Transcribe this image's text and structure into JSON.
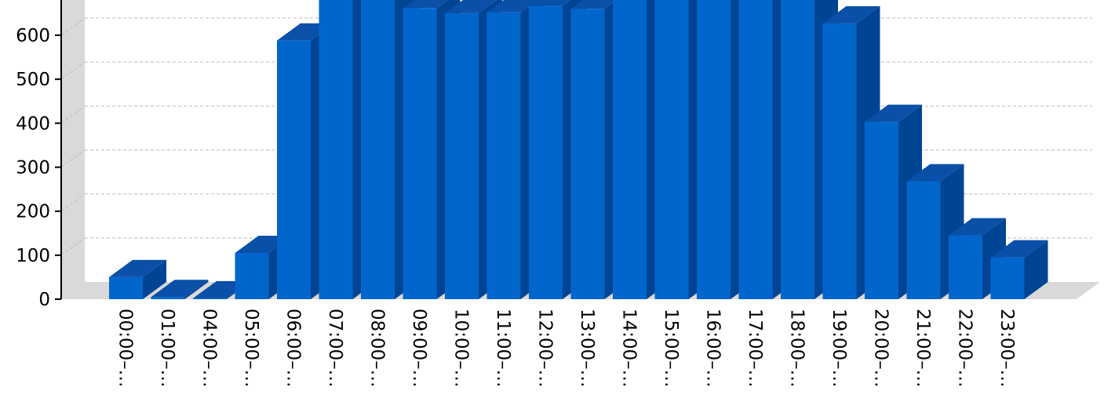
{
  "chart_data": {
    "type": "bar",
    "style": "3d",
    "title": "",
    "xlabel": "",
    "ylabel": "",
    "categories": [
      "00:00–…",
      "01:00–…",
      "04:00–…",
      "05:00–…",
      "06:00–…",
      "07:00–…",
      "08:00–…",
      "09:00–…",
      "10:00–…",
      "11:00–…",
      "12:00–…",
      "13:00–…",
      "14:00–…",
      "15:00–…",
      "16:00–…",
      "17:00–…",
      "18:00–…",
      "19:00–…",
      "20:00–…",
      "21:00–…",
      "22:00–…",
      "23:00–…"
    ],
    "values": [
      50,
      5,
      2,
      105,
      588,
      740,
      703,
      662,
      650,
      652,
      667,
      660,
      688,
      707,
      710,
      727,
      692,
      627,
      403,
      268,
      145,
      95
    ],
    "ylim": [
      0,
      800
    ],
    "yticks": [
      0,
      100,
      200,
      300,
      400,
      500,
      600,
      700
    ],
    "grid": true,
    "colors": {
      "front": "#0066cc",
      "top": "#0a4fa8",
      "side": "#004494",
      "wall": "#d9d9d9",
      "grid": "#bbbbbb"
    }
  }
}
